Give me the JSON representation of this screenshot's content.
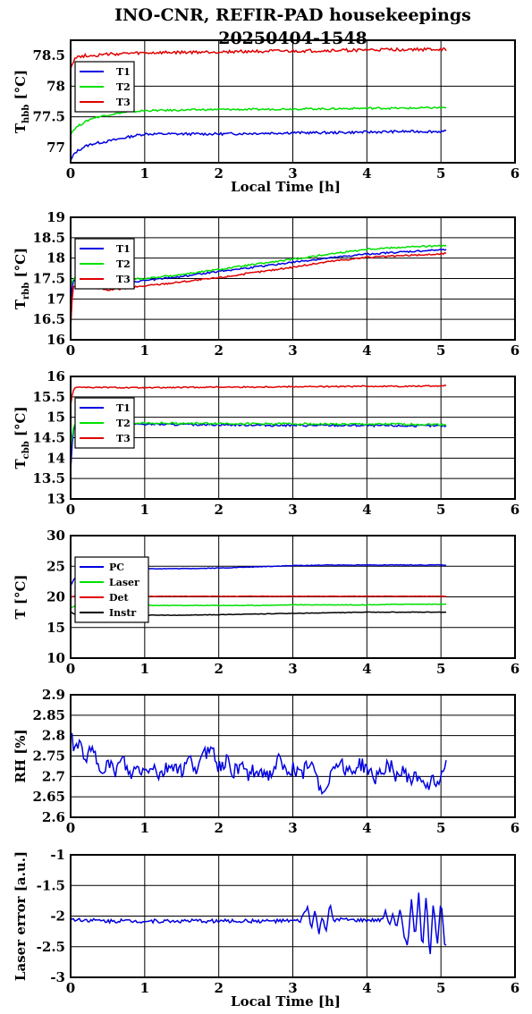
{
  "title_line1": "INO-CNR, REFIR-PAD housekeepings",
  "title_line2": "20250404-1548",
  "colors": {
    "T1": "#0000e0",
    "T2": "#00e000",
    "T3": "#e00000",
    "PC": "#0000e0",
    "Laser": "#00e000",
    "Det": "#e00000",
    "Instr": "#000000"
  },
  "chart_data": [
    {
      "type": "line",
      "xlabel": "Local Time [h]",
      "ylabel": "T",
      "ylabel_sub": "hbb",
      "ylabel_unit": " [°C]",
      "xlim": [
        0,
        6
      ],
      "ylim": [
        76.75,
        78.75
      ],
      "xticks": [
        "0",
        "1",
        "2",
        "3",
        "4",
        "5",
        "6"
      ],
      "yticks": [
        {
          "v": 77,
          "label": "77"
        },
        {
          "v": 77.5,
          "label": "77.5"
        },
        {
          "v": 78,
          "label": "78"
        },
        {
          "v": 78.5,
          "label": "78.5"
        }
      ],
      "grid": true,
      "legend": "top-left",
      "series": [
        {
          "name": "T1",
          "color": "#0000e0",
          "x": [
            0,
            0.05,
            0.1,
            0.2,
            0.3,
            0.5,
            0.7,
            0.9,
            1.0,
            1.5,
            2.0,
            2.5,
            3.0,
            3.5,
            4.0,
            4.5,
            5.0,
            5.07
          ],
          "y": [
            76.78,
            76.9,
            76.95,
            77.02,
            77.06,
            77.1,
            77.15,
            77.2,
            77.22,
            77.22,
            77.22,
            77.23,
            77.24,
            77.24,
            77.25,
            77.26,
            77.26,
            77.26
          ],
          "noise": 0.02
        },
        {
          "name": "T2",
          "color": "#00e000",
          "x": [
            0,
            0.05,
            0.1,
            0.2,
            0.3,
            0.5,
            0.7,
            0.9,
            1.0,
            1.5,
            2.0,
            2.5,
            3.0,
            3.5,
            4.0,
            4.5,
            5.0,
            5.07
          ],
          "y": [
            77.22,
            77.3,
            77.35,
            77.42,
            77.48,
            77.53,
            77.57,
            77.59,
            77.6,
            77.61,
            77.62,
            77.62,
            77.63,
            77.63,
            77.64,
            77.64,
            77.65,
            77.65
          ],
          "noise": 0.015
        },
        {
          "name": "T3",
          "color": "#e00000",
          "x": [
            0,
            0.05,
            0.1,
            0.2,
            0.3,
            0.5,
            0.7,
            1.0,
            1.5,
            2.0,
            2.5,
            3.0,
            3.5,
            4.0,
            4.5,
            5.0,
            5.07
          ],
          "y": [
            78.3,
            78.45,
            78.48,
            78.5,
            78.5,
            78.52,
            78.53,
            78.54,
            78.55,
            78.56,
            78.57,
            78.57,
            78.58,
            78.59,
            78.6,
            78.6,
            78.6
          ],
          "noise": 0.025
        }
      ]
    },
    {
      "type": "line",
      "xlabel": "",
      "ylabel": "T",
      "ylabel_sub": "rbb",
      "ylabel_unit": " [°C]",
      "xlim": [
        0,
        6
      ],
      "ylim": [
        16,
        19
      ],
      "xticks": [
        "0",
        "1",
        "2",
        "3",
        "4",
        "5",
        "6"
      ],
      "yticks": [
        {
          "v": 16,
          "label": "16"
        },
        {
          "v": 16.5,
          "label": "16.5"
        },
        {
          "v": 17,
          "label": "17"
        },
        {
          "v": 17.5,
          "label": "17.5"
        },
        {
          "v": 18,
          "label": "18"
        },
        {
          "v": 18.5,
          "label": "18.5"
        },
        {
          "v": 19,
          "label": "19"
        }
      ],
      "grid": true,
      "legend": "top-left",
      "series": [
        {
          "name": "T1",
          "color": "#0000e0",
          "x": [
            0,
            0.03,
            0.1,
            0.3,
            0.5,
            0.7,
            1.0,
            1.5,
            2.0,
            2.5,
            3.0,
            3.5,
            4.0,
            4.5,
            5.0,
            5.07
          ],
          "y": [
            16.9,
            17.45,
            17.5,
            17.45,
            17.4,
            17.38,
            17.45,
            17.55,
            17.68,
            17.78,
            17.9,
            18.0,
            18.1,
            18.15,
            18.2,
            18.22
          ],
          "noise": 0.02
        },
        {
          "name": "T2",
          "color": "#00e000",
          "x": [
            0,
            0.03,
            0.1,
            0.3,
            0.5,
            0.7,
            1.0,
            1.5,
            2.0,
            2.5,
            3.0,
            3.5,
            4.0,
            4.5,
            5.0,
            5.07
          ],
          "y": [
            17.3,
            17.5,
            17.55,
            17.52,
            17.5,
            17.48,
            17.5,
            17.6,
            17.72,
            17.85,
            17.97,
            18.1,
            18.22,
            18.27,
            18.3,
            18.3
          ],
          "noise": 0.02
        },
        {
          "name": "T3",
          "color": "#e00000",
          "x": [
            0,
            0.03,
            0.1,
            0.3,
            0.5,
            0.7,
            1.0,
            1.5,
            2.0,
            2.5,
            3.0,
            3.5,
            4.0,
            4.5,
            5.0,
            5.07
          ],
          "y": [
            16.3,
            17.3,
            17.35,
            17.28,
            17.22,
            17.25,
            17.32,
            17.42,
            17.52,
            17.65,
            17.78,
            17.92,
            18.02,
            18.06,
            18.1,
            18.12
          ],
          "noise": 0.02
        }
      ]
    },
    {
      "type": "line",
      "xlabel": "",
      "ylabel": "T",
      "ylabel_sub": "cbb",
      "ylabel_unit": " [°C]",
      "xlim": [
        0,
        6
      ],
      "ylim": [
        13,
        16
      ],
      "xticks": [
        "0",
        "1",
        "2",
        "3",
        "4",
        "5",
        "6"
      ],
      "yticks": [
        {
          "v": 13,
          "label": "13"
        },
        {
          "v": 13.5,
          "label": "13.5"
        },
        {
          "v": 14,
          "label": "14"
        },
        {
          "v": 14.5,
          "label": "14.5"
        },
        {
          "v": 15,
          "label": "15"
        },
        {
          "v": 15.5,
          "label": "15.5"
        },
        {
          "v": 16,
          "label": "16"
        }
      ],
      "grid": true,
      "legend": "top-left",
      "series": [
        {
          "name": "T1",
          "color": "#0000e0",
          "x": [
            0,
            0.03,
            0.06,
            0.1,
            0.3,
            0.5,
            1.0,
            1.5,
            2.0,
            2.5,
            3.0,
            3.5,
            4.0,
            4.5,
            5.0,
            5.07
          ],
          "y": [
            13.7,
            14.6,
            14.8,
            14.85,
            14.85,
            14.84,
            14.83,
            14.82,
            14.82,
            14.81,
            14.8,
            14.8,
            14.8,
            14.79,
            14.79,
            14.79
          ],
          "noise": 0.025
        },
        {
          "name": "T2",
          "color": "#00e000",
          "x": [
            0,
            0.03,
            0.06,
            0.1,
            0.3,
            0.5,
            1.0,
            1.5,
            2.0,
            2.5,
            3.0,
            3.5,
            4.0,
            4.5,
            5.0,
            5.07
          ],
          "y": [
            14.2,
            14.7,
            14.85,
            14.88,
            14.88,
            14.87,
            14.86,
            14.85,
            14.85,
            14.84,
            14.84,
            14.83,
            14.83,
            14.83,
            14.82,
            14.82
          ],
          "noise": 0.025
        },
        {
          "name": "T3",
          "color": "#e00000",
          "x": [
            0,
            0.03,
            0.06,
            0.1,
            0.3,
            0.5,
            1.0,
            1.5,
            2.0,
            2.5,
            3.0,
            3.5,
            4.0,
            4.5,
            5.0,
            5.07
          ],
          "y": [
            15.3,
            15.65,
            15.72,
            15.74,
            15.73,
            15.73,
            15.72,
            15.73,
            15.74,
            15.74,
            15.75,
            15.75,
            15.76,
            15.76,
            15.77,
            15.77
          ],
          "noise": 0.015
        }
      ]
    },
    {
      "type": "line",
      "xlabel": "",
      "ylabel": "T [°C]",
      "ylabel_sub": "",
      "ylabel_unit": "",
      "xlim": [
        0,
        6
      ],
      "ylim": [
        10,
        30
      ],
      "xticks": [
        "0",
        "1",
        "2",
        "3",
        "4",
        "5",
        "6"
      ],
      "yticks": [
        {
          "v": 10,
          "label": "10"
        },
        {
          "v": 15,
          "label": "15"
        },
        {
          "v": 20,
          "label": "20"
        },
        {
          "v": 25,
          "label": "25"
        },
        {
          "v": 30,
          "label": "30"
        }
      ],
      "grid": true,
      "legend": "top-left",
      "series": [
        {
          "name": "PC",
          "color": "#0000e0",
          "x": [
            0,
            0.05,
            0.1,
            0.2,
            0.4,
            0.6,
            1.0,
            1.5,
            2.0,
            2.5,
            3.0,
            3.5,
            4.0,
            4.5,
            5.0,
            5.07
          ],
          "y": [
            21.8,
            23.0,
            23.6,
            24.0,
            24.3,
            24.5,
            24.6,
            24.6,
            24.7,
            24.9,
            25.1,
            25.2,
            25.2,
            25.2,
            25.2,
            25.2
          ],
          "noise": 0.05
        },
        {
          "name": "Laser",
          "color": "#00e000",
          "x": [
            0,
            0.05,
            0.1,
            0.3,
            0.6,
            1.0,
            1.5,
            2.0,
            2.5,
            3.0,
            3.5,
            4.0,
            4.5,
            5.0,
            5.07
          ],
          "y": [
            18.2,
            18.5,
            18.6,
            18.6,
            18.6,
            18.6,
            18.6,
            18.6,
            18.6,
            18.7,
            18.7,
            18.7,
            18.8,
            18.8,
            18.8
          ],
          "noise": 0.05
        },
        {
          "name": "Det",
          "color": "#e00000",
          "x": [
            0,
            0.05,
            0.1,
            0.3,
            0.6,
            1.0,
            1.5,
            2.0,
            2.5,
            3.0,
            3.5,
            4.0,
            4.5,
            5.0,
            5.07
          ],
          "y": [
            20.0,
            20.1,
            20.1,
            20.1,
            20.1,
            20.1,
            20.1,
            20.1,
            20.1,
            20.1,
            20.1,
            20.1,
            20.1,
            20.1,
            20.1
          ],
          "noise": 0.04
        },
        {
          "name": "Instr",
          "color": "#000000",
          "x": [
            0,
            0.05,
            0.1,
            0.3,
            0.6,
            1.0,
            1.5,
            2.0,
            2.5,
            3.0,
            3.5,
            4.0,
            4.5,
            5.0,
            5.07
          ],
          "y": [
            17.5,
            17.2,
            17.1,
            17.0,
            17.0,
            17.0,
            17.0,
            17.1,
            17.2,
            17.3,
            17.4,
            17.5,
            17.5,
            17.5,
            17.5
          ],
          "noise": 0.04
        }
      ]
    },
    {
      "type": "line",
      "xlabel": "",
      "ylabel": "RH [%]",
      "ylabel_sub": "",
      "ylabel_unit": "",
      "xlim": [
        0,
        6
      ],
      "ylim": [
        2.6,
        2.9
      ],
      "xticks": [
        "0",
        "1",
        "2",
        "3",
        "4",
        "5",
        "6"
      ],
      "yticks": [
        {
          "v": 2.6,
          "label": "2.6"
        },
        {
          "v": 2.65,
          "label": "2.65"
        },
        {
          "v": 2.7,
          "label": "2.7"
        },
        {
          "v": 2.75,
          "label": "2.75"
        },
        {
          "v": 2.8,
          "label": "2.8"
        },
        {
          "v": 2.85,
          "label": "2.85"
        },
        {
          "v": 2.9,
          "label": "2.9"
        }
      ],
      "grid": true,
      "legend": "none",
      "series": [
        {
          "name": "",
          "color": "#0000e0",
          "x": [
            0,
            0.05,
            0.1,
            0.2,
            0.3,
            0.4,
            0.5,
            0.6,
            0.7,
            0.8,
            0.9,
            1.0,
            1.1,
            1.2,
            1.3,
            1.4,
            1.5,
            1.6,
            1.7,
            1.8,
            1.9,
            2.0,
            2.1,
            2.2,
            2.3,
            2.4,
            2.5,
            2.6,
            2.7,
            2.8,
            2.9,
            3.0,
            3.1,
            3.2,
            3.3,
            3.4,
            3.5,
            3.6,
            3.7,
            3.8,
            3.9,
            4.0,
            4.1,
            4.2,
            4.3,
            4.4,
            4.5,
            4.6,
            4.7,
            4.8,
            4.9,
            5.0,
            5.07
          ],
          "y": [
            2.8,
            2.77,
            2.78,
            2.75,
            2.76,
            2.72,
            2.73,
            2.71,
            2.74,
            2.7,
            2.72,
            2.71,
            2.73,
            2.7,
            2.72,
            2.73,
            2.71,
            2.74,
            2.72,
            2.75,
            2.78,
            2.72,
            2.74,
            2.71,
            2.73,
            2.7,
            2.72,
            2.71,
            2.7,
            2.74,
            2.71,
            2.72,
            2.7,
            2.73,
            2.71,
            2.66,
            2.7,
            2.74,
            2.72,
            2.71,
            2.73,
            2.72,
            2.69,
            2.72,
            2.73,
            2.7,
            2.71,
            2.69,
            2.7,
            2.68,
            2.69,
            2.7,
            2.74
          ],
          "noise": 0.018
        }
      ]
    },
    {
      "type": "line",
      "xlabel": "Local Time [h]",
      "ylabel": "Laser error [a.u.]",
      "ylabel_sub": "",
      "ylabel_unit": "",
      "xlim": [
        0,
        6
      ],
      "ylim": [
        -3,
        -1
      ],
      "xticks": [
        "0",
        "1",
        "2",
        "3",
        "4",
        "5",
        "6"
      ],
      "yticks": [
        {
          "v": -3,
          "label": "-3"
        },
        {
          "v": -2.5,
          "label": "-2.5"
        },
        {
          "v": -2,
          "label": "-2"
        },
        {
          "v": -1.5,
          "label": "-1.5"
        },
        {
          "v": -1,
          "label": "-1"
        }
      ],
      "grid": true,
      "legend": "none",
      "series": [
        {
          "name": "",
          "color": "#0000e0",
          "x": [
            0,
            0.5,
            1.0,
            1.5,
            2.0,
            2.5,
            3.0,
            3.1,
            3.2,
            3.25,
            3.3,
            3.35,
            3.4,
            3.45,
            3.5,
            3.55,
            3.6,
            3.8,
            4.0,
            4.2,
            4.25,
            4.3,
            4.35,
            4.4,
            4.45,
            4.5,
            4.55,
            4.6,
            4.65,
            4.7,
            4.75,
            4.8,
            4.85,
            4.9,
            4.95,
            5.0,
            5.05,
            5.07
          ],
          "y": [
            -2.05,
            -2.08,
            -2.08,
            -2.08,
            -2.08,
            -2.08,
            -2.08,
            -2.08,
            -1.85,
            -2.2,
            -1.9,
            -2.3,
            -2.0,
            -2.25,
            -1.8,
            -2.1,
            -2.05,
            -2.07,
            -2.07,
            -2.07,
            -1.9,
            -2.15,
            -1.95,
            -2.2,
            -1.9,
            -2.3,
            -2.5,
            -1.7,
            -2.4,
            -1.6,
            -2.6,
            -1.65,
            -2.7,
            -1.75,
            -2.5,
            -1.7,
            -2.45,
            -2.5
          ],
          "noise": 0.03
        }
      ]
    }
  ]
}
